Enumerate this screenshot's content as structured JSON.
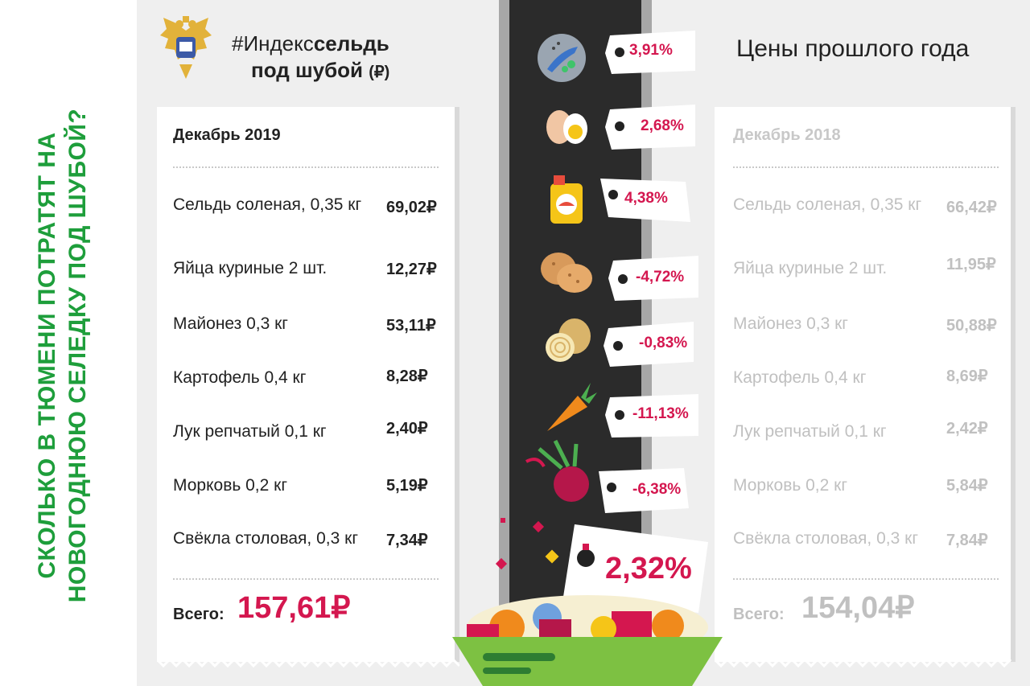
{
  "side_title": "Сколько в Тюмени потратят на новогоднюю селедку под шубой?",
  "header": {
    "hash_prefix": "#Индекс",
    "hash_bold": "сельдь",
    "line2": "под шубой",
    "line2_unit": "(₽)"
  },
  "previous_year_title": "Цены прошлого года",
  "left_card": {
    "heading": "Декабрь 2019",
    "rows": [
      {
        "name": "Сельдь соленая, 0,35 кг",
        "price": "69,02₽"
      },
      {
        "name": "Яйца куриные 2 шт.",
        "price": "12,27₽"
      },
      {
        "name": "Майонез 0,3 кг",
        "price": "53,11₽"
      },
      {
        "name": "Картофель 0,4 кг",
        "price": "8,28₽"
      },
      {
        "name": "Лук репчатый 0,1 кг",
        "price": "2,40₽"
      },
      {
        "name": "Морковь 0,2 кг",
        "price": "5,19₽"
      },
      {
        "name": "Свёкла столовая, 0,3 кг",
        "price": "7,34₽"
      }
    ],
    "total_label": "Всего:",
    "total_value": "157,61₽"
  },
  "right_card": {
    "heading": "Декабрь 2018",
    "rows": [
      {
        "name": "Сельдь соленая, 0,35 кг",
        "price": "66,42₽"
      },
      {
        "name": "Яйца куриные 2 шт.",
        "price": "11,95₽"
      },
      {
        "name": "Майонез 0,3 кг",
        "price": "50,88₽"
      },
      {
        "name": "Картофель 0,4 кг",
        "price": "8,69₽"
      },
      {
        "name": "Лук репчатый 0,1 кг",
        "price": "2,42₽"
      },
      {
        "name": "Морковь 0,2 кг",
        "price": "5,84₽"
      },
      {
        "name": "Свёкла столовая, 0,3 кг",
        "price": "7,84₽"
      }
    ],
    "total_label": "Всего:",
    "total_value": "154,04₽"
  },
  "tags": [
    {
      "icon": "herring-icon",
      "change": "3,91%"
    },
    {
      "icon": "egg-icon",
      "change": "2,68%"
    },
    {
      "icon": "mayonnaise-icon",
      "change": "4,38%"
    },
    {
      "icon": "potato-icon",
      "change": "-4,72%"
    },
    {
      "icon": "onion-icon",
      "change": "-0,83%"
    },
    {
      "icon": "carrot-icon",
      "change": "-11,13%"
    },
    {
      "icon": "beet-icon",
      "change": "-6,38%"
    }
  ],
  "total_change": "2,32%",
  "colors": {
    "accent_red": "#d4174f",
    "title_green": "#1e9e3b",
    "muted_gray": "#c0c0c0",
    "road": "#2b2b2b"
  }
}
